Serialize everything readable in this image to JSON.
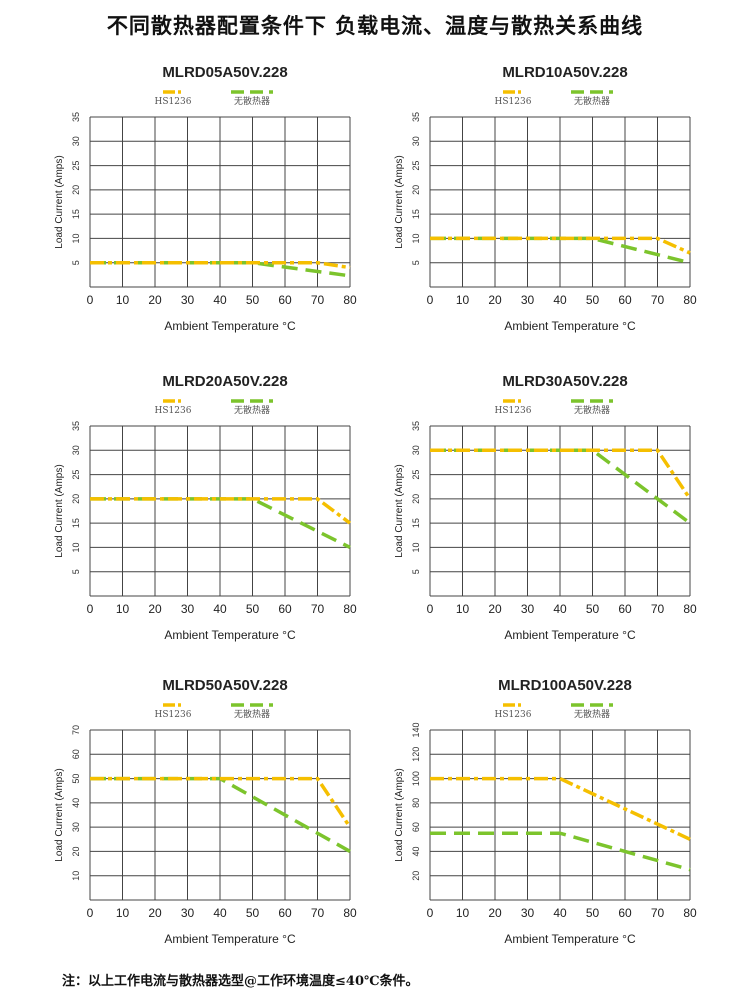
{
  "page": {
    "title": "不同散热器配置条件下  负载电流、温度与散热关系曲线",
    "note": "注：以上工作电流与散热器选型@工作环境温度≤40℃条件。"
  },
  "colors": {
    "hs": "#f5bf00",
    "none": "#7cc42c",
    "grid": "#444444"
  },
  "chart_data": [
    {
      "type": "line",
      "title": "MLRD05A50V.228",
      "xlabel": "Ambient Temperature °C",
      "ylabel": "Load Current (Amps)",
      "xlim": [
        0,
        80
      ],
      "ylim": [
        0,
        35
      ],
      "xticks": [
        0,
        10,
        20,
        30,
        40,
        50,
        60,
        70,
        80
      ],
      "yticks": [
        5,
        10,
        15,
        20,
        25,
        30,
        35
      ],
      "legend": [
        "HS1236",
        "无散热器"
      ],
      "series": [
        {
          "name": "HS1236",
          "points": [
            [
              0,
              5
            ],
            [
              70,
              5
            ],
            [
              80,
              4
            ]
          ]
        },
        {
          "name": "无散热器",
          "points": [
            [
              0,
              5
            ],
            [
              50,
              5
            ],
            [
              80,
              2.3
            ]
          ]
        }
      ]
    },
    {
      "type": "line",
      "title": "MLRD10A50V.228",
      "xlabel": "Ambient Temperature °C",
      "ylabel": "Load Current (Amps)",
      "xlim": [
        0,
        80
      ],
      "ylim": [
        0,
        35
      ],
      "xticks": [
        0,
        10,
        20,
        30,
        40,
        50,
        60,
        70,
        80
      ],
      "yticks": [
        5,
        10,
        15,
        20,
        25,
        30,
        35
      ],
      "legend": [
        "HS1236",
        "无散热器"
      ],
      "series": [
        {
          "name": "HS1236",
          "points": [
            [
              0,
              10
            ],
            [
              70,
              10
            ],
            [
              80,
              7
            ]
          ]
        },
        {
          "name": "无散热器",
          "points": [
            [
              0,
              10
            ],
            [
              50,
              10
            ],
            [
              80,
              5
            ]
          ]
        }
      ]
    },
    {
      "type": "line",
      "title": "MLRD20A50V.228",
      "xlabel": "Ambient Temperature °C",
      "ylabel": "Load Current (Amps)",
      "xlim": [
        0,
        80
      ],
      "ylim": [
        0,
        35
      ],
      "xticks": [
        0,
        10,
        20,
        30,
        40,
        50,
        60,
        70,
        80
      ],
      "yticks": [
        5,
        10,
        15,
        20,
        25,
        30,
        35
      ],
      "legend": [
        "HS1236",
        "无散热器"
      ],
      "series": [
        {
          "name": "HS1236",
          "points": [
            [
              0,
              20
            ],
            [
              70,
              20
            ],
            [
              80,
              15
            ]
          ]
        },
        {
          "name": "无散热器",
          "points": [
            [
              0,
              20
            ],
            [
              50,
              20
            ],
            [
              80,
              10
            ]
          ]
        }
      ]
    },
    {
      "type": "line",
      "title": "MLRD30A50V.228",
      "xlabel": "Ambient Temperature °C",
      "ylabel": "Load Current (Amps)",
      "xlim": [
        0,
        80
      ],
      "ylim": [
        0,
        35
      ],
      "xticks": [
        0,
        10,
        20,
        30,
        40,
        50,
        60,
        70,
        80
      ],
      "yticks": [
        5,
        10,
        15,
        20,
        25,
        30,
        35
      ],
      "legend": [
        "HS1236",
        "无散热器"
      ],
      "series": [
        {
          "name": "HS1236",
          "points": [
            [
              0,
              30
            ],
            [
              70,
              30
            ],
            [
              80,
              20
            ]
          ]
        },
        {
          "name": "无散热器",
          "points": [
            [
              0,
              30
            ],
            [
              50,
              30
            ],
            [
              80,
              15
            ]
          ]
        }
      ]
    },
    {
      "type": "line",
      "title": "MLRD50A50V.228",
      "xlabel": "Ambient Temperature °C",
      "ylabel": "Load Current (Amps)",
      "xlim": [
        0,
        80
      ],
      "ylim": [
        0,
        70
      ],
      "xticks": [
        0,
        10,
        20,
        30,
        40,
        50,
        60,
        70,
        80
      ],
      "yticks": [
        10,
        20,
        30,
        40,
        50,
        60,
        70
      ],
      "legend": [
        "HS1236",
        "无散热器"
      ],
      "series": [
        {
          "name": "HS1236",
          "points": [
            [
              0,
              50
            ],
            [
              70,
              50
            ],
            [
              80,
              30
            ]
          ]
        },
        {
          "name": "无散热器",
          "points": [
            [
              0,
              50
            ],
            [
              40,
              50
            ],
            [
              80,
              20
            ]
          ]
        }
      ]
    },
    {
      "type": "line",
      "title": "MLRD100A50V.228",
      "xlabel": "Ambient Temperature °C",
      "ylabel": "Load Current (Amps)",
      "xlim": [
        0,
        80
      ],
      "ylim": [
        0,
        140
      ],
      "xticks": [
        0,
        10,
        20,
        30,
        40,
        50,
        60,
        70,
        80
      ],
      "yticks": [
        20,
        40,
        60,
        80,
        100,
        120,
        140
      ],
      "legend": [
        "HS1236",
        "无散热器"
      ],
      "series": [
        {
          "name": "HS1236",
          "points": [
            [
              0,
              100
            ],
            [
              40,
              100
            ],
            [
              80,
              50
            ]
          ]
        },
        {
          "name": "无散热器",
          "points": [
            [
              0,
              55
            ],
            [
              40,
              55
            ],
            [
              80,
              25
            ]
          ]
        }
      ]
    }
  ]
}
